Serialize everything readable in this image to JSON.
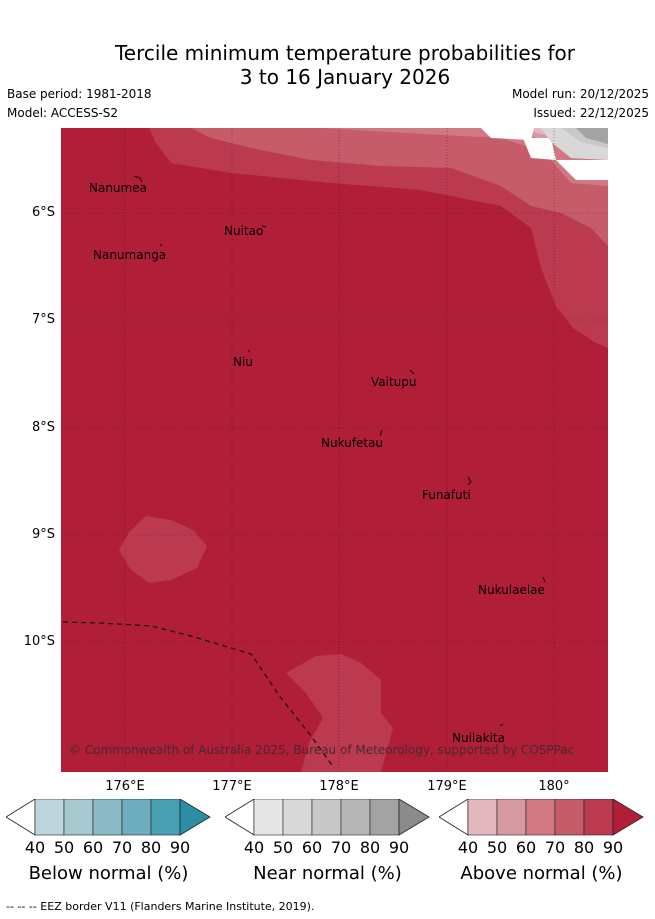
{
  "title_line1": "Tercile minimum temperature probabilities for",
  "title_line2": "3 to 16 January 2026",
  "base_period": "Base period: 1981-2018",
  "model": "Model: ACCESS-S2",
  "model_run": "Model run: 20/12/2025",
  "issued": "Issued: 22/12/2025",
  "lat_labels": [
    "6°S",
    "7°S",
    "8°S",
    "9°S",
    "10°S"
  ],
  "lon_labels": [
    "176°E",
    "177°E",
    "178°E",
    "179°E",
    "180°"
  ],
  "places": {
    "nanumea": "Nanumea",
    "nuitao": "Nuitao",
    "nanumanga": "Nanumanga",
    "niu": "Niu",
    "vaitupu": "Vaitupu",
    "nukufetau": "Nukufetau",
    "funafuti": "Funafuti",
    "nukulaelae": "Nukulaelae",
    "nuilakita": "Nuilakita"
  },
  "copyright": "© Commonwealth of Australia 2025, Bureau of Meteorology, supported by COSPPac",
  "colorbars": {
    "ticks": [
      "40",
      "50",
      "60",
      "70",
      "80",
      "90"
    ],
    "below": {
      "label": "Below normal (%)",
      "colors": [
        "#bdd5dc",
        "#a6c8cf",
        "#8bb9c5",
        "#6eadbd",
        "#47a0b1",
        "#2c8ea3"
      ]
    },
    "near": {
      "label": "Near normal (%)",
      "colors": [
        "#e6e6e6",
        "#d8d8d8",
        "#c8c8c8",
        "#b6b6b6",
        "#a3a3a3",
        "#8b8b8b"
      ]
    },
    "above": {
      "label": "Above normal (%)",
      "colors": [
        "#e3b8bf",
        "#d89aa2",
        "#d07983",
        "#c65b69",
        "#bb3a4f",
        "#b01e38"
      ]
    }
  },
  "footer": "--  --  -- EEZ border V11 (Flanders Marine Institute, 2019)."
}
